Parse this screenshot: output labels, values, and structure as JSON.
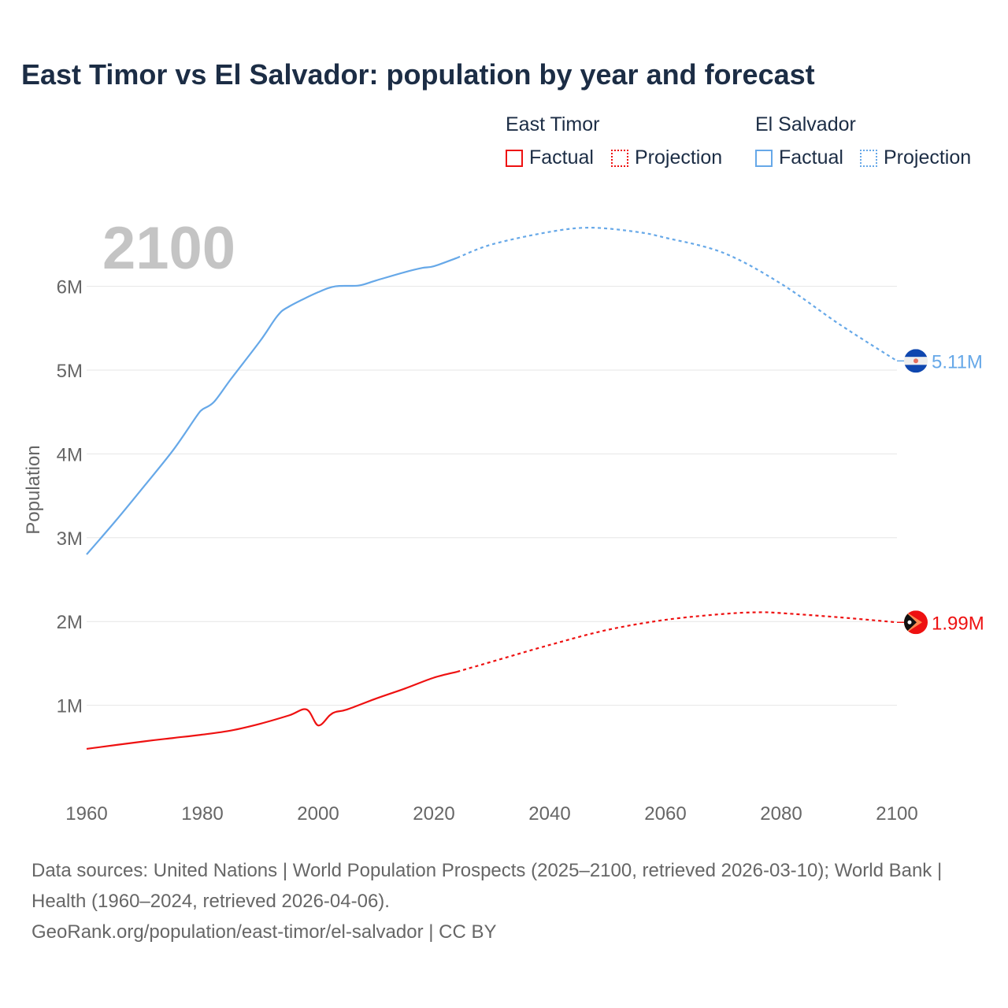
{
  "title": "East Timor vs El Salvador: population by year and forecast",
  "legend": {
    "groups": [
      {
        "name": "East Timor",
        "color": "#ee1111",
        "factual": "Factual",
        "projection": "Projection"
      },
      {
        "name": "El Salvador",
        "color": "#66a8e8",
        "factual": "Factual",
        "projection": "Projection"
      }
    ]
  },
  "current_year": "2100",
  "source_lines": [
    "Data sources: United Nations | World Population Prospects (2025–2100, retrieved 2026-03-10); World Bank | Health (1960–2024, retrieved 2026-04-06).",
    "GeoRank.org/population/east-timor/el-salvador | CC BY"
  ],
  "chart_data": {
    "type": "line",
    "title": "East Timor vs El Salvador: population by year and forecast",
    "xlabel": "",
    "ylabel": "Population",
    "xlim": [
      1960,
      2100
    ],
    "ylim": [
      0,
      6.6
    ],
    "xticks": [
      1960,
      1980,
      2000,
      2020,
      2040,
      2060,
      2080,
      2100
    ],
    "xtick_labels": [
      "1960",
      "1980",
      "2000",
      "2020",
      "2040",
      "2060",
      "2080",
      "2100"
    ],
    "yticks": [
      1,
      2,
      3,
      4,
      5,
      6
    ],
    "ytick_labels": [
      "1M",
      "2M",
      "3M",
      "4M",
      "5M",
      "6M"
    ],
    "grid": true,
    "legend_position": "top-right",
    "series": [
      {
        "name": "El Salvador",
        "color": "#66a8e8",
        "end_label": "5.11M",
        "factual": {
          "x": [
            1960,
            1965,
            1970,
            1975,
            1979,
            1980,
            1982,
            1985,
            1990,
            1993,
            1995,
            2000,
            2003,
            2007,
            2010,
            2015,
            2018,
            2020,
            2024
          ],
          "y": [
            2.8,
            3.2,
            3.62,
            4.05,
            4.45,
            4.53,
            4.62,
            4.9,
            5.35,
            5.65,
            5.76,
            5.93,
            6.0,
            6.01,
            6.07,
            6.17,
            6.22,
            6.24,
            6.34
          ]
        },
        "projection": {
          "x": [
            2024,
            2030,
            2040,
            2047,
            2055,
            2060,
            2070,
            2080,
            2090,
            2100
          ],
          "y": [
            6.34,
            6.5,
            6.65,
            6.7,
            6.65,
            6.58,
            6.4,
            6.03,
            5.55,
            5.11
          ]
        }
      },
      {
        "name": "East Timor",
        "color": "#ee1111",
        "end_label": "1.99M",
        "factual": {
          "x": [
            1960,
            1970,
            1975,
            1980,
            1985,
            1990,
            1995,
            1998,
            2000,
            2002,
            2003,
            2005,
            2010,
            2015,
            2020,
            2024
          ],
          "y": [
            0.48,
            0.57,
            0.61,
            0.65,
            0.7,
            0.78,
            0.88,
            0.95,
            0.76,
            0.88,
            0.92,
            0.95,
            1.08,
            1.2,
            1.33,
            1.4
          ]
        },
        "projection": {
          "x": [
            2024,
            2030,
            2040,
            2050,
            2060,
            2070,
            2076,
            2080,
            2090,
            2100
          ],
          "y": [
            1.4,
            1.52,
            1.72,
            1.9,
            2.02,
            2.09,
            2.11,
            2.1,
            2.05,
            1.99
          ]
        }
      }
    ]
  }
}
